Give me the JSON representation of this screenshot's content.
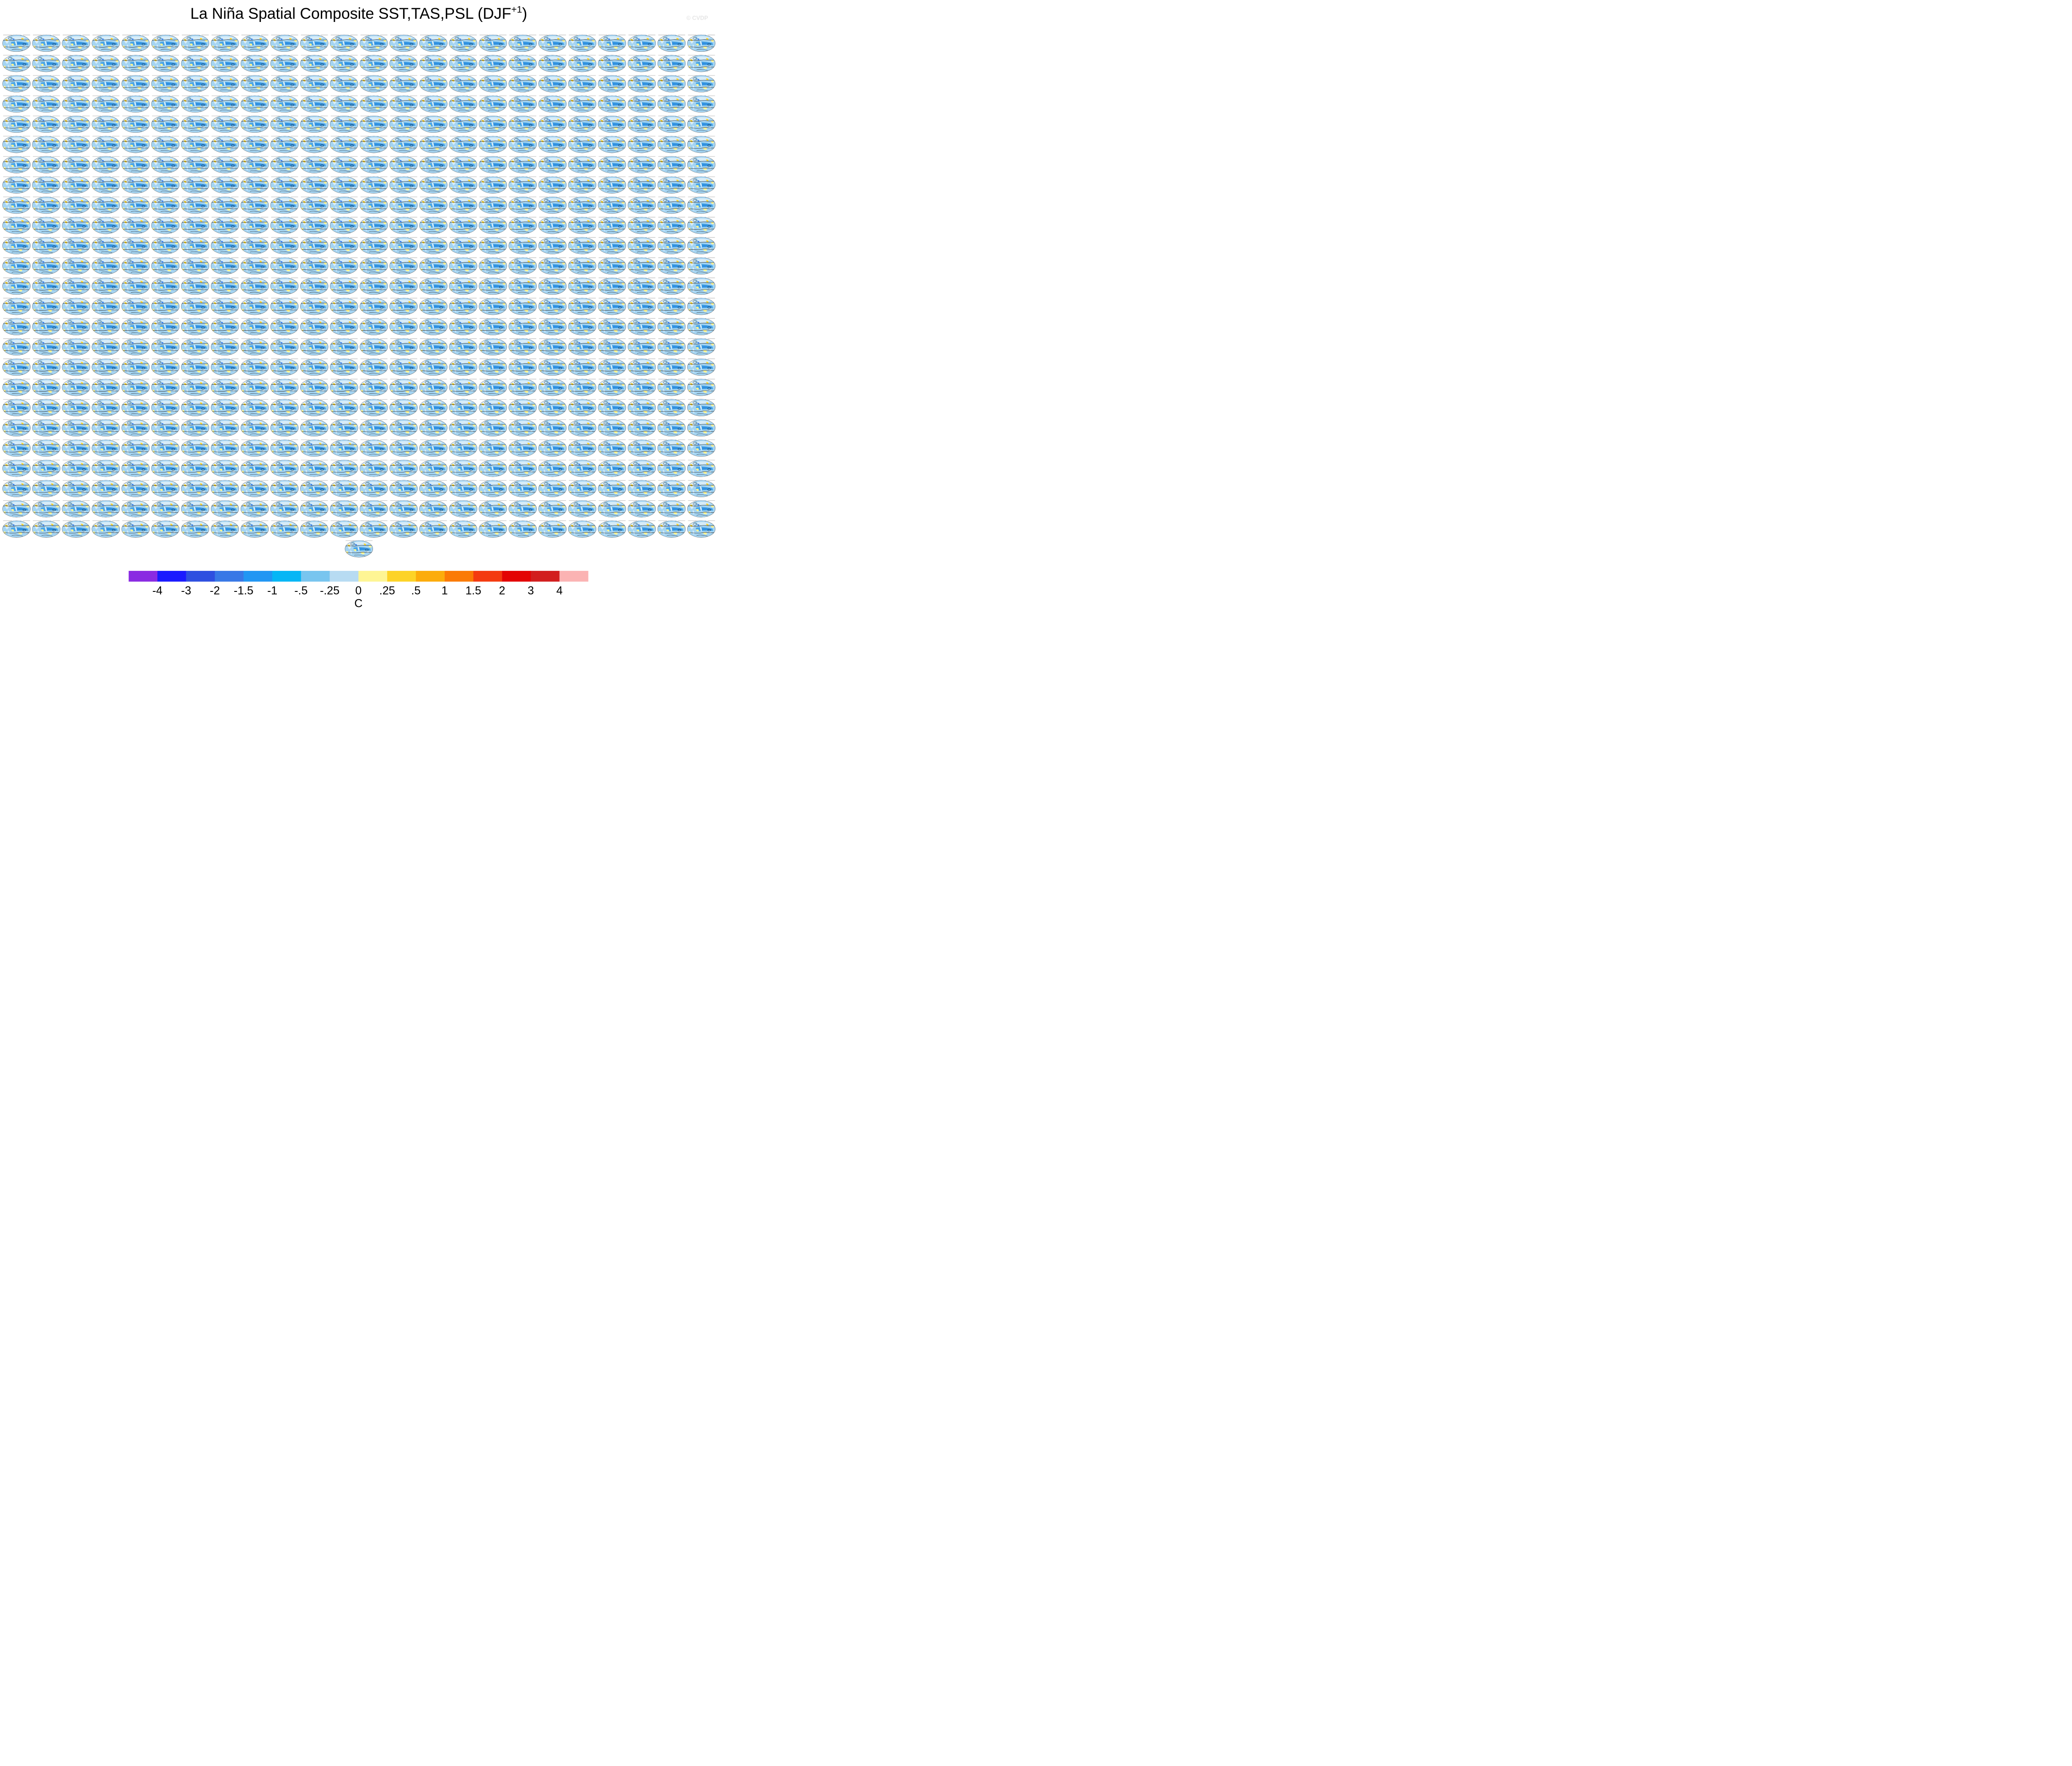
{
  "figure": {
    "title_main": "La Niña Spatial Composite SST,TAS,PSL (DJF",
    "title_sup": "+1",
    "title_close": ")",
    "watermark": "© CVDP"
  },
  "chart_data": {
    "type": "heatmap",
    "description_panels": "grid of small global map composites (Robinson-like ovals) shaded by SST/TAS anomaly with PSL contours",
    "panel_rows": 25,
    "panel_cols": 24,
    "extra_panel_below": true,
    "colorbar": {
      "unit": "C",
      "tick_labels": [
        "-4",
        "-3",
        "-2",
        "-1.5",
        "-1",
        "-.5",
        "-.25",
        "0",
        ".25",
        ".5",
        "1",
        "1.5",
        "2",
        "3",
        "4"
      ],
      "colors": [
        "#8a2be2",
        "#1a1aff",
        "#2e4fe0",
        "#3878e6",
        "#2196f3",
        "#06b6f5",
        "#78c5ef",
        "#b7dbf2",
        "#fef594",
        "#fdd327",
        "#fcac0b",
        "#fb7a05",
        "#f43a10",
        "#e30404",
        "#d21e1e",
        "#fbb3b3"
      ]
    },
    "palette": {
      "ocean_cold": "#5fb4ea",
      "ocean_cool": "#9fd2f2",
      "land_pale": "#d7ecf8",
      "warm_light": "#fef594",
      "warm": "#fdd327",
      "contour": "#1a1a1a"
    }
  }
}
